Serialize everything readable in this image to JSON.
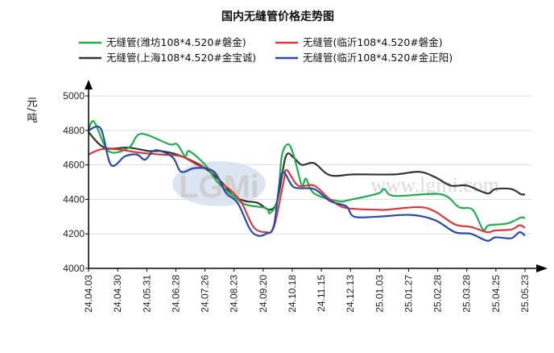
{
  "chart_data": {
    "type": "line",
    "title": "国内无缝管价格走势图",
    "ylabel": "元/吨",
    "xlabel": "",
    "ylim": [
      4000,
      5000
    ],
    "yticks": [
      4000,
      4200,
      4400,
      4600,
      4800,
      5000
    ],
    "grid": true,
    "legend_position": "top",
    "categories": [
      "24.04.03",
      "24.04.30",
      "24.05.31",
      "24.06.28",
      "24.07.26",
      "24.08.23",
      "24.09.20",
      "24.10.18",
      "24.11.15",
      "24.12.13",
      "25.01.03",
      "25.01.27",
      "25.02.28",
      "25.03.28",
      "25.04.25",
      "25.05.23"
    ],
    "x_note": "x values are positions along the category axis (0 = first category)",
    "series": [
      {
        "name": "无缝管(潍坊108*4.520#磐金)",
        "color": "#1fae4e",
        "points": [
          [
            0,
            4800
          ],
          [
            0.19,
            4850
          ],
          [
            0.69,
            4680
          ],
          [
            1.38,
            4700
          ],
          [
            1.8,
            4780
          ],
          [
            2.77,
            4720
          ],
          [
            3.04,
            4720
          ],
          [
            3.32,
            4650
          ],
          [
            3.46,
            4680
          ],
          [
            4.01,
            4600
          ],
          [
            4.43,
            4500
          ],
          [
            4.98,
            4420
          ],
          [
            5.4,
            4370
          ],
          [
            6.09,
            4350
          ],
          [
            6.23,
            4320
          ],
          [
            6.5,
            4400
          ],
          [
            6.64,
            4650
          ],
          [
            6.86,
            4720
          ],
          [
            7.06,
            4650
          ],
          [
            7.33,
            4480
          ],
          [
            7.47,
            4520
          ],
          [
            7.75,
            4435
          ],
          [
            8.58,
            4390
          ],
          [
            9.05,
            4400
          ],
          [
            9.96,
            4435
          ],
          [
            10.16,
            4460
          ],
          [
            10.52,
            4420
          ],
          [
            12.1,
            4430
          ],
          [
            12.73,
            4355
          ],
          [
            13.2,
            4340
          ],
          [
            13.56,
            4225
          ],
          [
            13.76,
            4250
          ],
          [
            14.39,
            4260
          ],
          [
            14.86,
            4295
          ],
          [
            15,
            4290
          ]
        ]
      },
      {
        "name": "无缝管(临沂108*4.520#磐金)",
        "color": "#d93a3a",
        "points": [
          [
            0,
            4660
          ],
          [
            0.42,
            4690
          ],
          [
            0.97,
            4690
          ],
          [
            1.8,
            4670
          ],
          [
            2.49,
            4660
          ],
          [
            3.18,
            4650
          ],
          [
            3.74,
            4600
          ],
          [
            4.29,
            4560
          ],
          [
            4.57,
            4490
          ],
          [
            4.84,
            4460
          ],
          [
            5.26,
            4380
          ],
          [
            5.67,
            4240
          ],
          [
            6.09,
            4210
          ],
          [
            6.37,
            4240
          ],
          [
            6.7,
            4500
          ],
          [
            6.81,
            4570
          ],
          [
            7.2,
            4480
          ],
          [
            7.75,
            4480
          ],
          [
            8.3,
            4400
          ],
          [
            8.86,
            4350
          ],
          [
            9.96,
            4340
          ],
          [
            10.24,
            4340
          ],
          [
            11.35,
            4355
          ],
          [
            11.9,
            4330
          ],
          [
            12.59,
            4255
          ],
          [
            13.15,
            4240
          ],
          [
            13.7,
            4210
          ],
          [
            13.98,
            4220
          ],
          [
            14.53,
            4225
          ],
          [
            14.81,
            4250
          ],
          [
            15,
            4235
          ]
        ]
      },
      {
        "name": "无缝管(上海108*4.520#金宝诚)",
        "color": "#333333",
        "points": [
          [
            0,
            4790
          ],
          [
            0.55,
            4700
          ],
          [
            1.38,
            4700
          ],
          [
            2.08,
            4680
          ],
          [
            2.49,
            4680
          ],
          [
            3.04,
            4660
          ],
          [
            3.6,
            4620
          ],
          [
            4.01,
            4580
          ],
          [
            4.57,
            4500
          ],
          [
            4.98,
            4420
          ],
          [
            5.4,
            4390
          ],
          [
            5.81,
            4380
          ],
          [
            6.23,
            4340
          ],
          [
            6.5,
            4400
          ],
          [
            6.78,
            4650
          ],
          [
            7.06,
            4640
          ],
          [
            7.33,
            4600
          ],
          [
            7.75,
            4610
          ],
          [
            8.3,
            4540
          ],
          [
            9.13,
            4545
          ],
          [
            10.52,
            4545
          ],
          [
            11.35,
            4560
          ],
          [
            11.9,
            4530
          ],
          [
            12.45,
            4480
          ],
          [
            13.01,
            4480
          ],
          [
            13.7,
            4435
          ],
          [
            13.98,
            4460
          ],
          [
            14.53,
            4460
          ],
          [
            14.86,
            4430
          ],
          [
            15,
            4430
          ]
        ]
      },
      {
        "name": "无缝管(临沂108*4.520#金正阳)",
        "color": "#2a4aa8",
        "points": [
          [
            0,
            4800
          ],
          [
            0.42,
            4810
          ],
          [
            0.77,
            4600
          ],
          [
            1.25,
            4650
          ],
          [
            1.66,
            4660
          ],
          [
            1.94,
            4630
          ],
          [
            2.21,
            4680
          ],
          [
            2.49,
            4680
          ],
          [
            2.91,
            4640
          ],
          [
            3.18,
            4560
          ],
          [
            3.6,
            4580
          ],
          [
            4.01,
            4580
          ],
          [
            4.37,
            4550
          ],
          [
            4.71,
            4440
          ],
          [
            5.12,
            4380
          ],
          [
            5.54,
            4230
          ],
          [
            5.81,
            4190
          ],
          [
            6.09,
            4200
          ],
          [
            6.37,
            4250
          ],
          [
            6.64,
            4550
          ],
          [
            7.06,
            4470
          ],
          [
            7.75,
            4460
          ],
          [
            8.3,
            4390
          ],
          [
            8.86,
            4360
          ],
          [
            9.13,
            4300
          ],
          [
            9.96,
            4300
          ],
          [
            11.07,
            4310
          ],
          [
            11.9,
            4280
          ],
          [
            12.59,
            4210
          ],
          [
            13.15,
            4200
          ],
          [
            13.7,
            4160
          ],
          [
            13.98,
            4180
          ],
          [
            14.53,
            4175
          ],
          [
            14.81,
            4210
          ],
          [
            15,
            4190
          ]
        ]
      }
    ]
  },
  "watermark": {
    "logo": "LGMi",
    "url": "www.lgmi.com"
  }
}
